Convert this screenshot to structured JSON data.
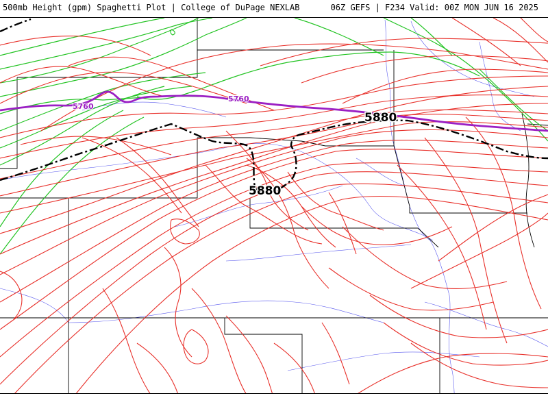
{
  "header": {
    "title_left": "500mb Height (gpm) Spaghetti Plot | College of DuPage NEXLAB",
    "title_right": "06Z GEFS | F234 Valid: 00Z MON JUN 16 2025"
  },
  "contours": {
    "label_5880_a": "5880",
    "label_5880_b": "5880",
    "label_5760_a": "5760",
    "label_5760_b": "5760"
  },
  "colors": {
    "member_5880": "#e8302a",
    "member_5760": "#22c322",
    "mean_5760": "#9b1fc4",
    "mean_5880": "#000000",
    "borders": "#000000",
    "rivers": "#5a5aee"
  }
}
